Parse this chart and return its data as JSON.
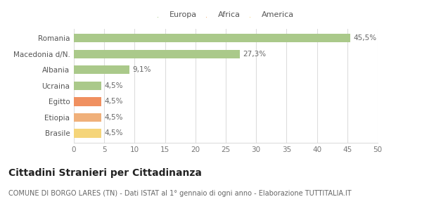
{
  "categories": [
    "Brasile",
    "Etiopia",
    "Egitto",
    "Ucraina",
    "Albania",
    "Macedonia d/N.",
    "Romania"
  ],
  "values": [
    4.5,
    4.5,
    4.5,
    4.5,
    9.1,
    27.3,
    45.5
  ],
  "labels": [
    "4,5%",
    "4,5%",
    "4,5%",
    "4,5%",
    "9,1%",
    "27,3%",
    "45,5%"
  ],
  "colors": [
    "#f5d57a",
    "#f0b07a",
    "#f09060",
    "#aac98a",
    "#aac98a",
    "#aac98a",
    "#aac98a"
  ],
  "legend": [
    {
      "label": "Europa",
      "color": "#aac98a"
    },
    {
      "label": "Africa",
      "color": "#f0b07a"
    },
    {
      "label": "America",
      "color": "#f5d57a"
    }
  ],
  "xlim": [
    0,
    50
  ],
  "xticks": [
    0,
    5,
    10,
    15,
    20,
    25,
    30,
    35,
    40,
    45,
    50
  ],
  "title": "Cittadini Stranieri per Cittadinanza",
  "subtitle": "COMUNE DI BORGO LARES (TN) - Dati ISTAT al 1° gennaio di ogni anno - Elaborazione TUTTITALIA.IT",
  "bg_color": "#ffffff",
  "grid_color": "#dddddd",
  "bar_height": 0.55,
  "label_fontsize": 7.5,
  "tick_fontsize": 7.5,
  "title_fontsize": 10,
  "subtitle_fontsize": 7
}
